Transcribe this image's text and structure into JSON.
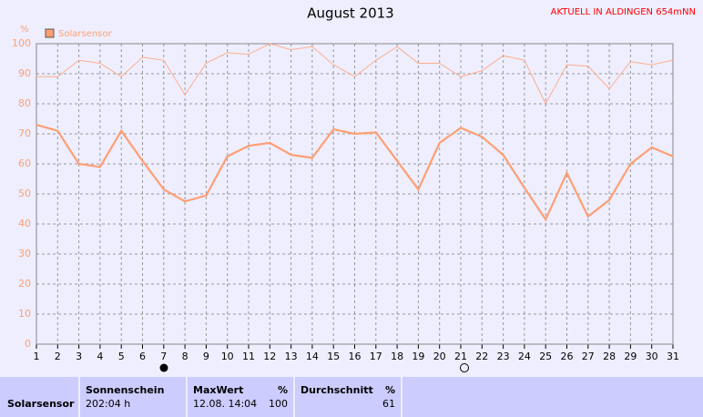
{
  "chart_data": {
    "type": "line",
    "title": "August 2013",
    "subtitle": "AKTUELL IN ALDINGEN 654mNN",
    "y_label": "%",
    "categories": [
      "1",
      "2",
      "3",
      "4",
      "5",
      "6",
      "7",
      "8",
      "9",
      "10",
      "11",
      "12",
      "13",
      "14",
      "15",
      "16",
      "17",
      "18",
      "19",
      "20",
      "21",
      "22",
      "23",
      "24",
      "25",
      "26",
      "27",
      "28",
      "29",
      "30",
      "31"
    ],
    "series": [
      {
        "name": "Solarsensor",
        "color": "#ff9f73",
        "width": 2.2,
        "values": [
          73,
          71,
          60,
          59,
          71,
          61,
          51.5,
          47.5,
          49.5,
          62.5,
          66,
          67,
          63,
          62,
          71.5,
          70,
          70.5,
          61,
          51.5,
          67,
          72,
          69,
          63,
          52,
          41.5,
          57,
          42.5,
          48,
          60,
          65.5,
          62.5
        ]
      },
      {
        "color": "#ffae8a",
        "width": 1,
        "values": [
          89,
          89,
          94.5,
          93.5,
          89,
          95.5,
          94.5,
          83,
          93.5,
          97,
          96.5,
          100,
          98,
          99,
          93,
          89,
          94.5,
          99,
          93.5,
          93.5,
          89,
          91,
          96,
          94.5,
          80,
          93,
          92.5,
          85,
          94,
          93,
          94.5
        ]
      }
    ],
    "ylim": [
      0,
      100
    ],
    "yticks": [
      0,
      10,
      20,
      30,
      40,
      50,
      60,
      70,
      80,
      90,
      100
    ],
    "grid": true
  },
  "table": {
    "row_label": "Solarsensor",
    "columns": [
      {
        "header": "Sonnenschein",
        "values": [
          "202:04 h"
        ]
      },
      {
        "header": "MaxWert",
        "unit": "%",
        "values": [
          "12.08. 14:04",
          100
        ]
      },
      {
        "header": "Durchschnitt",
        "unit": "%",
        "values": [
          61
        ]
      }
    ]
  }
}
